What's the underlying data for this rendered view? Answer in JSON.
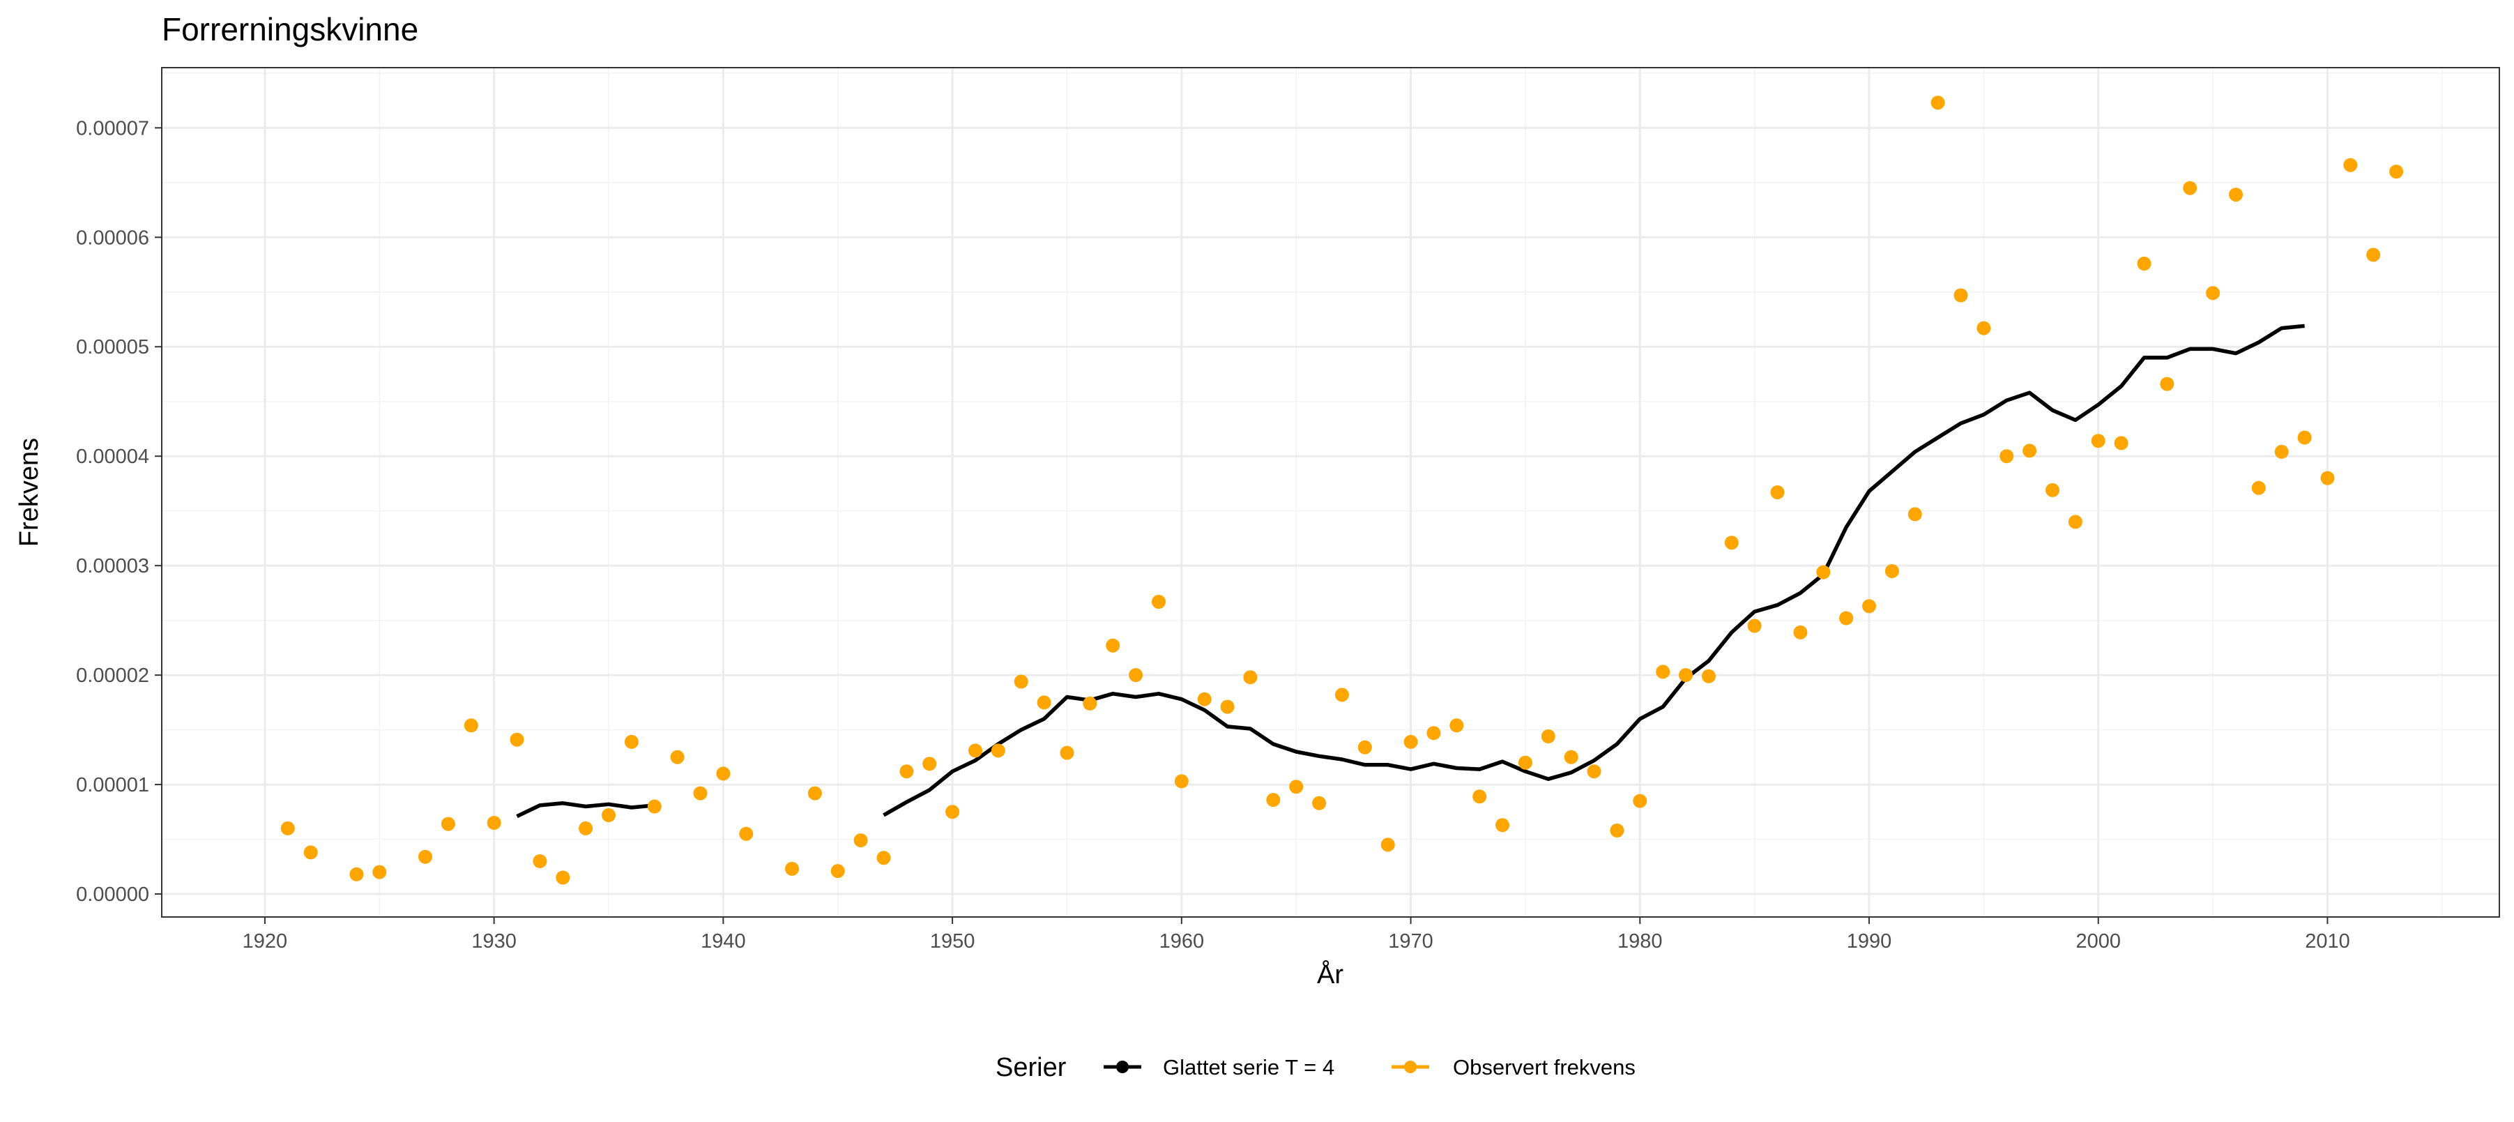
{
  "chart_data": {
    "type": "line",
    "title": "Forrerningskvinne",
    "xlabel": "År",
    "ylabel": "Frekvens",
    "xlim": [
      1915.5,
      2017.5
    ],
    "ylim": [
      -2.1e-06,
      7.55e-05
    ],
    "x_ticks": [
      1920,
      1930,
      1940,
      1950,
      1960,
      1970,
      1980,
      1990,
      2000,
      2010
    ],
    "y_ticks": [
      0.0,
      1e-05,
      2e-05,
      3e-05,
      4e-05,
      5e-05,
      6e-05,
      7e-05
    ],
    "y_tick_labels": [
      "0.00000",
      "0.00001",
      "0.00002",
      "0.00003",
      "0.00004",
      "0.00005",
      "0.00006",
      "0.00007"
    ],
    "grid": true,
    "legend_position": "bottom",
    "legend": {
      "title": "Serier",
      "entries": [
        "Glattet serie T  = 4",
        "Observert frekvens"
      ]
    },
    "series": [
      {
        "name": "Glattet serie T  = 4",
        "kind": "line",
        "color": "#000000",
        "segments": [
          {
            "x": [
              1931,
              1932,
              1933,
              1934,
              1935,
              1936,
              1937
            ],
            "y": [
              7.1e-06,
              8.1e-06,
              8.3e-06,
              8e-06,
              8.2e-06,
              7.9e-06,
              8.1e-06
            ]
          },
          {
            "x": [
              1947,
              1948,
              1949,
              1950,
              1951,
              1952,
              1953,
              1954,
              1955,
              1956,
              1957,
              1958,
              1959,
              1960,
              1961,
              1962,
              1963,
              1964,
              1965,
              1966,
              1967,
              1968,
              1969,
              1970,
              1971,
              1972,
              1973,
              1974,
              1975,
              1976,
              1977,
              1978,
              1979,
              1980,
              1981,
              1982,
              1983,
              1984,
              1985,
              1986,
              1987,
              1988,
              1989,
              1990,
              1991,
              1992,
              1993,
              1994,
              1995,
              1996,
              1997,
              1998,
              1999,
              2000,
              2001,
              2002,
              2003,
              2004,
              2005,
              2006,
              2007,
              2008,
              2009
            ],
            "y": [
              7.2e-06,
              8.4e-06,
              9.5e-06,
              1.12e-05,
              1.22e-05,
              1.37e-05,
              1.5e-05,
              1.6e-05,
              1.8e-05,
              1.77e-05,
              1.83e-05,
              1.8e-05,
              1.83e-05,
              1.78e-05,
              1.68e-05,
              1.53e-05,
              1.51e-05,
              1.37e-05,
              1.3e-05,
              1.26e-05,
              1.23e-05,
              1.18e-05,
              1.18e-05,
              1.14e-05,
              1.19e-05,
              1.15e-05,
              1.14e-05,
              1.21e-05,
              1.12e-05,
              1.05e-05,
              1.11e-05,
              1.22e-05,
              1.37e-05,
              1.6e-05,
              1.71e-05,
              1.97e-05,
              2.13e-05,
              2.39e-05,
              2.58e-05,
              2.64e-05,
              2.75e-05,
              2.92e-05,
              3.35e-05,
              3.68e-05,
              3.86e-05,
              4.04e-05,
              4.17e-05,
              4.3e-05,
              4.38e-05,
              4.51e-05,
              4.58e-05,
              4.42e-05,
              4.33e-05,
              4.47e-05,
              4.64e-05,
              4.9e-05,
              4.9e-05,
              4.98e-05,
              4.98e-05,
              4.94e-05,
              5.04e-05,
              5.17e-05,
              5.19e-05
            ]
          }
        ]
      },
      {
        "name": "Observert frekvens",
        "kind": "scatter",
        "color": "#FFA500",
        "x": [
          1921,
          1922,
          1924,
          1925,
          1927,
          1928,
          1929,
          1930,
          1931,
          1932,
          1933,
          1934,
          1935,
          1936,
          1937,
          1938,
          1939,
          1940,
          1941,
          1943,
          1944,
          1945,
          1946,
          1947,
          1948,
          1949,
          1950,
          1951,
          1952,
          1953,
          1954,
          1955,
          1956,
          1957,
          1958,
          1959,
          1960,
          1961,
          1962,
          1963,
          1964,
          1965,
          1966,
          1967,
          1968,
          1969,
          1970,
          1971,
          1972,
          1973,
          1974,
          1975,
          1976,
          1977,
          1978,
          1979,
          1980,
          1981,
          1982,
          1983,
          1984,
          1985,
          1986,
          1987,
          1988,
          1989,
          1990,
          1991,
          1992,
          1993,
          1994,
          1995,
          1996,
          1997,
          1998,
          1999,
          2000,
          2001,
          2002,
          2003,
          2004,
          2005,
          2006,
          2007,
          2008,
          2009,
          2010,
          2011,
          2012,
          2013
        ],
        "y": [
          6e-06,
          3.8e-06,
          1.8e-06,
          2e-06,
          3.4e-06,
          6.4e-06,
          1.54e-05,
          6.5e-06,
          1.41e-05,
          3e-06,
          1.5e-06,
          6e-06,
          7.2e-06,
          1.39e-05,
          8e-06,
          1.25e-05,
          9.2e-06,
          1.1e-05,
          5.5e-06,
          2.3e-06,
          9.2e-06,
          2.1e-06,
          4.9e-06,
          3.3e-06,
          1.12e-05,
          1.19e-05,
          7.5e-06,
          1.31e-05,
          1.31e-05,
          1.94e-05,
          1.75e-05,
          1.29e-05,
          1.74e-05,
          2.27e-05,
          2e-05,
          2.67e-05,
          1.03e-05,
          1.78e-05,
          1.71e-05,
          1.98e-05,
          8.6e-06,
          9.8e-06,
          8.3e-06,
          1.82e-05,
          1.34e-05,
          4.5e-06,
          1.39e-05,
          1.47e-05,
          1.54e-05,
          8.9e-06,
          6.3e-06,
          1.2e-05,
          1.44e-05,
          1.25e-05,
          1.12e-05,
          5.8e-06,
          8.5e-06,
          2.03e-05,
          2e-05,
          1.99e-05,
          3.21e-05,
          2.45e-05,
          3.67e-05,
          2.39e-05,
          2.94e-05,
          2.52e-05,
          2.63e-05,
          2.95e-05,
          3.47e-05,
          7.23e-05,
          5.47e-05,
          5.17e-05,
          4e-05,
          4.05e-05,
          3.69e-05,
          3.4e-05,
          4.14e-05,
          4.12e-05,
          5.76e-05,
          4.66e-05,
          6.45e-05,
          5.49e-05,
          6.39e-05,
          3.71e-05,
          4.04e-05,
          4.17e-05,
          3.8e-05,
          6.66e-05,
          5.84e-05,
          6.6e-05
        ]
      }
    ]
  }
}
